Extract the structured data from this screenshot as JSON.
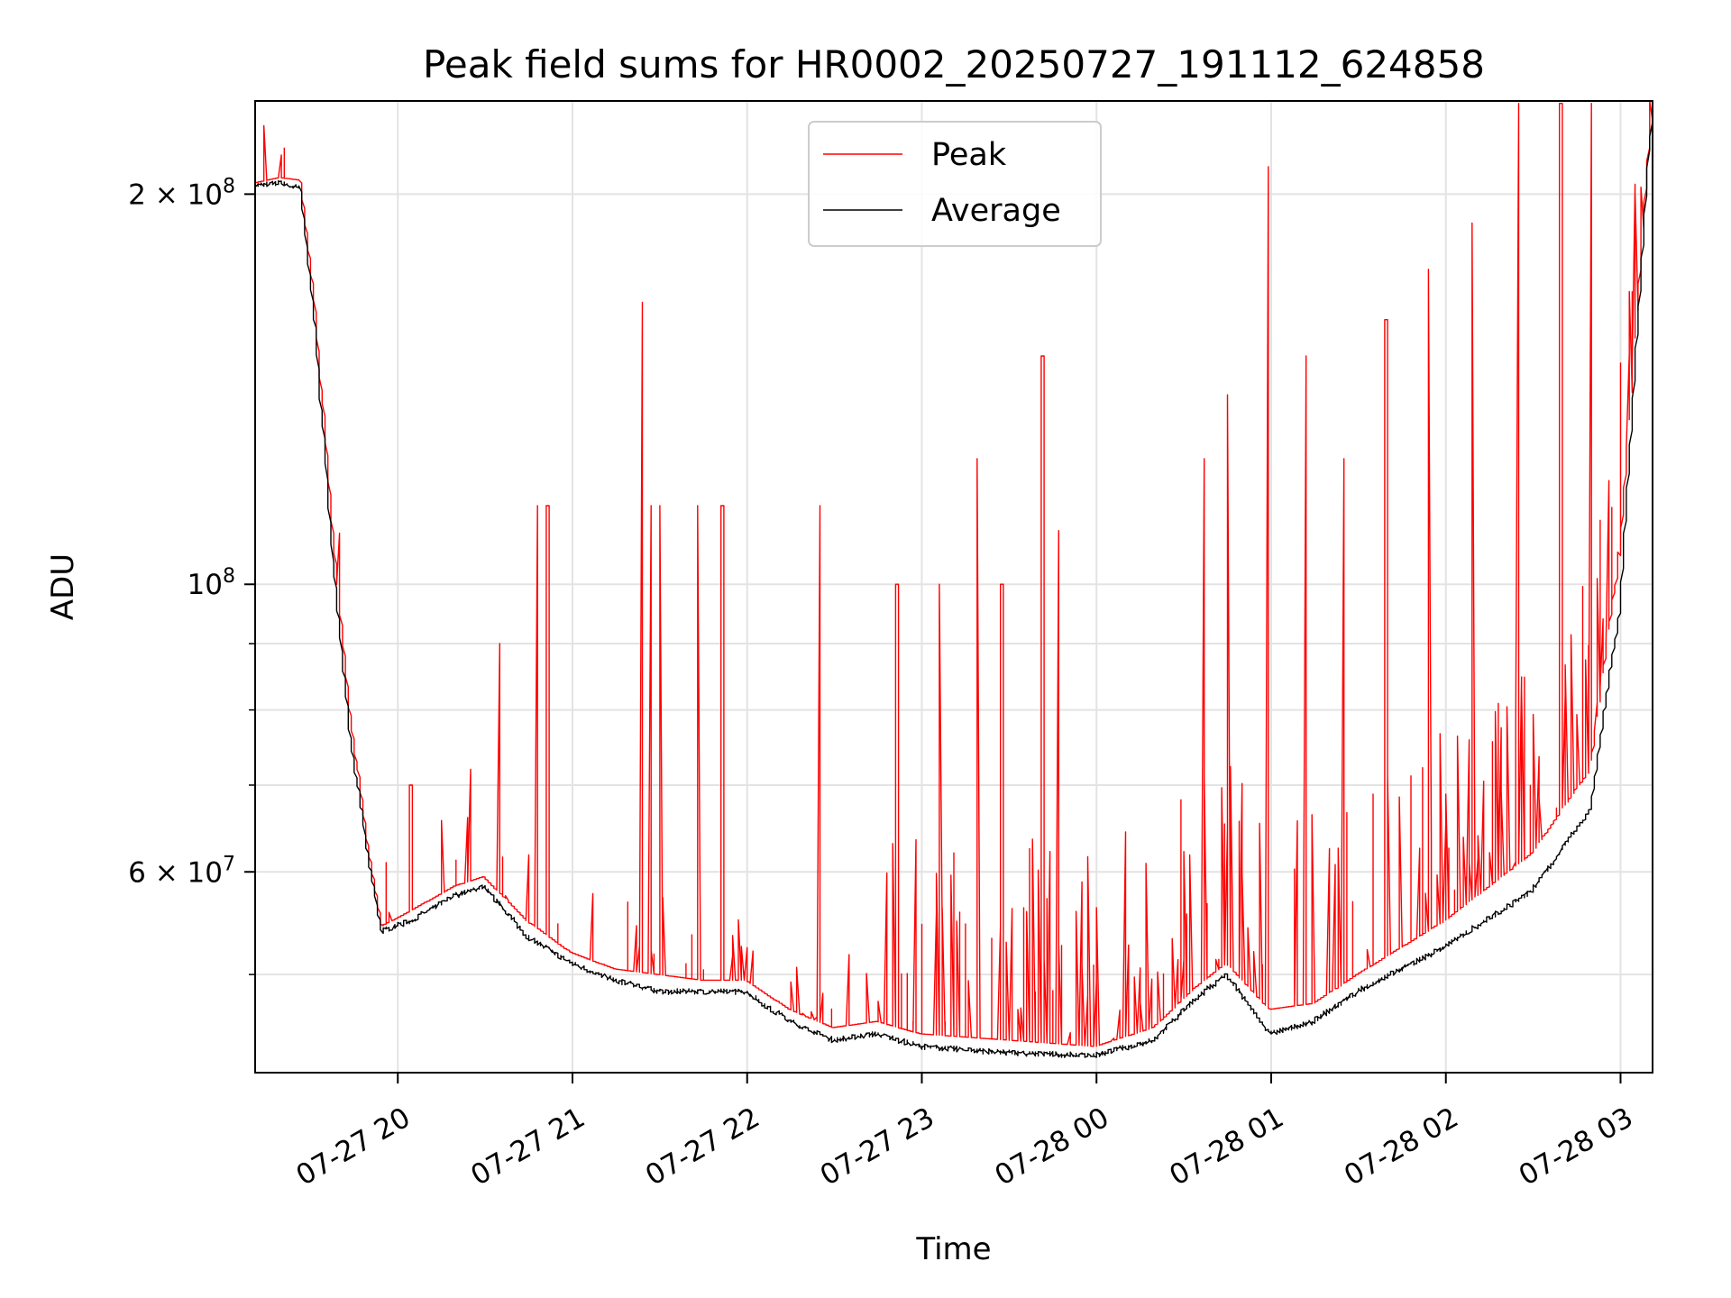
{
  "chart_data": {
    "type": "line",
    "title": "Peak field sums for HR0002_20250727_191112_624858",
    "xlabel": "Time",
    "ylabel": "ADU",
    "y_scale": "log",
    "grid": true,
    "legend_position": "top-center",
    "xlim": [
      "2025-07-27 19:11",
      "2025-07-28 03:11"
    ],
    "ylim": [
      42000000,
      236000000
    ],
    "x_ticks": [
      {
        "value": "2025-07-27 20:00",
        "label": "07-27 20"
      },
      {
        "value": "2025-07-27 21:00",
        "label": "07-27 21"
      },
      {
        "value": "2025-07-27 22:00",
        "label": "07-27 22"
      },
      {
        "value": "2025-07-27 23:00",
        "label": "07-27 23"
      },
      {
        "value": "2025-07-28 00:00",
        "label": "07-28 00"
      },
      {
        "value": "2025-07-28 01:00",
        "label": "07-28 01"
      },
      {
        "value": "2025-07-28 02:00",
        "label": "07-28 02"
      },
      {
        "value": "2025-07-28 03:00",
        "label": "07-28 03"
      }
    ],
    "y_ticks": [
      {
        "value": 200000000,
        "base": "2 × 10",
        "exp": "8"
      },
      {
        "value": 100000000,
        "base": "10",
        "exp": "8"
      },
      {
        "value": 60000000,
        "base": "6 × 10",
        "exp": "7"
      }
    ],
    "y_minor_ticks": [
      50000000,
      70000000,
      80000000,
      90000000
    ],
    "series": [
      {
        "name": "Peak",
        "color": "#ff0000",
        "x": [
          "2025-07-27 19:11",
          "2025-07-27 19:20",
          "2025-07-27 19:27",
          "2025-07-27 19:32",
          "2025-07-27 19:38",
          "2025-07-27 19:44",
          "2025-07-27 19:50",
          "2025-07-27 19:55",
          "2025-07-27 20:05",
          "2025-07-27 20:20",
          "2025-07-27 20:30",
          "2025-07-27 20:45",
          "2025-07-27 21:00",
          "2025-07-27 21:15",
          "2025-07-27 21:30",
          "2025-07-27 21:45",
          "2025-07-27 22:00",
          "2025-07-27 22:15",
          "2025-07-27 22:30",
          "2025-07-27 22:45",
          "2025-07-27 23:00",
          "2025-07-27 23:30",
          "2025-07-28 00:00",
          "2025-07-28 00:20",
          "2025-07-28 00:35",
          "2025-07-28 00:45",
          "2025-07-28 01:00",
          "2025-07-28 01:15",
          "2025-07-28 01:30",
          "2025-07-28 02:00",
          "2025-07-28 02:30",
          "2025-07-28 02:50",
          "2025-07-28 03:00",
          "2025-07-28 03:11"
        ],
        "y": [
          204000000,
          206000000,
          205000000,
          165000000,
          110000000,
          80000000,
          63000000,
          54500000,
          56000000,
          58500000,
          59500000,
          55000000,
          52000000,
          50500000,
          50000000,
          49500000,
          49500000,
          47000000,
          45500000,
          46000000,
          45000000,
          44500000,
          44000000,
          45500000,
          49000000,
          51000000,
          47000000,
          47500000,
          50000000,
          55000000,
          62000000,
          72000000,
          105000000,
          228000000
        ]
      },
      {
        "name": "Average",
        "color": "#000000",
        "x": [
          "2025-07-27 19:11",
          "2025-07-27 19:20",
          "2025-07-27 19:27",
          "2025-07-27 19:32",
          "2025-07-27 19:38",
          "2025-07-27 19:44",
          "2025-07-27 19:50",
          "2025-07-27 19:55",
          "2025-07-27 20:05",
          "2025-07-27 20:20",
          "2025-07-27 20:30",
          "2025-07-27 20:45",
          "2025-07-27 21:00",
          "2025-07-27 21:15",
          "2025-07-27 21:30",
          "2025-07-27 21:45",
          "2025-07-27 22:00",
          "2025-07-27 22:15",
          "2025-07-27 22:30",
          "2025-07-27 22:45",
          "2025-07-27 23:00",
          "2025-07-27 23:30",
          "2025-07-28 00:00",
          "2025-07-28 00:20",
          "2025-07-28 00:35",
          "2025-07-28 00:45",
          "2025-07-28 01:00",
          "2025-07-28 01:15",
          "2025-07-28 01:30",
          "2025-07-28 02:00",
          "2025-07-28 02:30",
          "2025-07-28 02:50",
          "2025-07-28 03:00",
          "2025-07-28 03:11"
        ],
        "y": [
          203000000,
          204000000,
          202000000,
          160000000,
          105000000,
          77000000,
          62000000,
          54000000,
          55000000,
          57500000,
          58500000,
          53500000,
          51000000,
          49500000,
          48500000,
          48500000,
          48500000,
          46000000,
          44500000,
          45000000,
          44000000,
          43500000,
          43300000,
          44500000,
          48000000,
          50000000,
          45000000,
          46000000,
          48500000,
          52500000,
          58000000,
          67000000,
          95000000,
          228000000
        ]
      }
    ],
    "peak_spikes": [
      {
        "x": "2025-07-27 20:05",
        "y": 70000000
      },
      {
        "x": "2025-07-27 20:25",
        "y": 72000000
      },
      {
        "x": "2025-07-27 20:35",
        "y": 90000000
      },
      {
        "x": "2025-07-27 20:48",
        "y": 115000000
      },
      {
        "x": "2025-07-27 20:52",
        "y": 115000000
      },
      {
        "x": "2025-07-27 21:24",
        "y": 165000000
      },
      {
        "x": "2025-07-27 21:27",
        "y": 115000000
      },
      {
        "x": "2025-07-27 21:31",
        "y": 115000000
      },
      {
        "x": "2025-07-27 21:44",
        "y": 115000000
      },
      {
        "x": "2025-07-27 21:52",
        "y": 115000000
      },
      {
        "x": "2025-07-27 22:25",
        "y": 115000000
      },
      {
        "x": "2025-07-27 22:52",
        "y": 100000000
      },
      {
        "x": "2025-07-27 23:07",
        "y": 100000000
      },
      {
        "x": "2025-07-27 23:20",
        "y": 125000000
      },
      {
        "x": "2025-07-27 23:28",
        "y": 100000000
      },
      {
        "x": "2025-07-27 23:42",
        "y": 150000000
      },
      {
        "x": "2025-07-27 23:47",
        "y": 110000000
      },
      {
        "x": "2025-07-28 00:37",
        "y": 125000000
      },
      {
        "x": "2025-07-28 00:46",
        "y": 140000000
      },
      {
        "x": "2025-07-28 00:59",
        "y": 210000000
      },
      {
        "x": "2025-07-28 01:12",
        "y": 150000000
      },
      {
        "x": "2025-07-28 01:25",
        "y": 125000000
      },
      {
        "x": "2025-07-28 01:40",
        "y": 160000000
      },
      {
        "x": "2025-07-28 01:55",
        "y": 175000000
      },
      {
        "x": "2025-07-28 02:10",
        "y": 190000000
      },
      {
        "x": "2025-07-28 02:25",
        "y": 235000000
      },
      {
        "x": "2025-07-28 02:40",
        "y": 235000000
      },
      {
        "x": "2025-07-28 02:50",
        "y": 235000000
      }
    ]
  }
}
